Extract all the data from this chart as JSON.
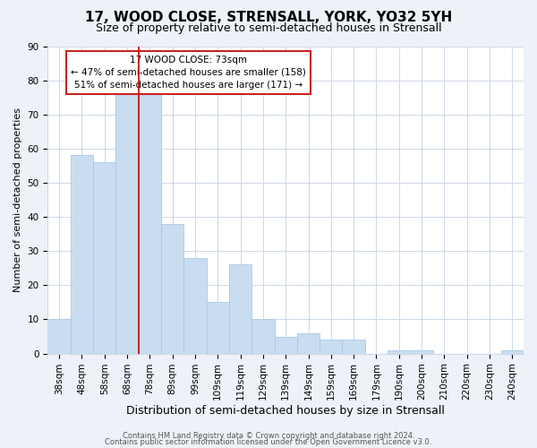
{
  "title": "17, WOOD CLOSE, STRENSALL, YORK, YO32 5YH",
  "subtitle": "Size of property relative to semi-detached houses in Strensall",
  "xlabel": "Distribution of semi-detached houses by size in Strensall",
  "ylabel": "Number of semi-detached properties",
  "categories": [
    "38sqm",
    "48sqm",
    "58sqm",
    "68sqm",
    "78sqm",
    "89sqm",
    "99sqm",
    "109sqm",
    "119sqm",
    "129sqm",
    "139sqm",
    "149sqm",
    "159sqm",
    "169sqm",
    "179sqm",
    "190sqm",
    "200sqm",
    "210sqm",
    "220sqm",
    "230sqm",
    "240sqm"
  ],
  "values": [
    10,
    58,
    56,
    76,
    76,
    38,
    28,
    15,
    26,
    10,
    5,
    6,
    4,
    4,
    0,
    1,
    1,
    0,
    0,
    0,
    1
  ],
  "bar_color": "#c9ddf0",
  "bar_edge_color": "#a8c8e8",
  "ylim": [
    0,
    90
  ],
  "yticks": [
    0,
    10,
    20,
    30,
    40,
    50,
    60,
    70,
    80,
    90
  ],
  "property_line_label": "17 WOOD CLOSE: 73sqm",
  "annotation_smaller": "← 47% of semi-detached houses are smaller (158)",
  "annotation_larger": "51% of semi-detached houses are larger (171) →",
  "footer1": "Contains HM Land Registry data © Crown copyright and database right 2024.",
  "footer2": "Contains public sector information licensed under the Open Government Licence v3.0.",
  "title_fontsize": 11,
  "subtitle_fontsize": 9,
  "xlabel_fontsize": 9,
  "ylabel_fontsize": 8,
  "tick_fontsize": 7.5,
  "background_color": "#eef2f8",
  "plot_bg_color": "#ffffff",
  "grid_color": "#ccd8e8",
  "red_line_color": "#cc0000",
  "annotation_box_color": "#cc2222"
}
